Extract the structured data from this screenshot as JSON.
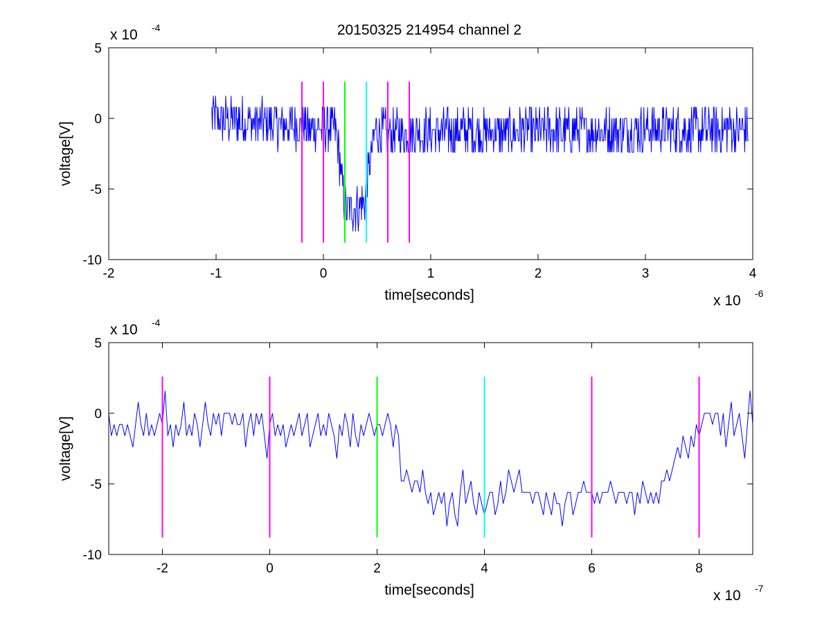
{
  "title": "20150325 214954 channel 2",
  "chart_data": [
    {
      "type": "line",
      "title": "20150325 214954 channel 2",
      "xlabel": "time[seconds]",
      "ylabel": "voltage[V]",
      "x_multiplier_label": "x 10",
      "x_multiplier_exp": "-6",
      "y_multiplier_label": "x 10",
      "y_multiplier_exp": "-4",
      "xlim": [
        -2,
        4
      ],
      "ylim": [
        -10,
        5
      ],
      "xticks": [
        -2,
        -1,
        0,
        1,
        2,
        3,
        4
      ],
      "yticks": [
        -10,
        -5,
        0,
        5
      ],
      "grid": false,
      "series": [
        {
          "color": "#0000ff",
          "x_start": -1.04,
          "x_step": 0.005,
          "baseline_segments": [
            {
              "x": -1.04,
              "y": 0
            },
            {
              "x": 0.12,
              "y": -0.8
            },
            {
              "x": 0.2,
              "y": -6.5
            },
            {
              "x": 0.38,
              "y": -6.0
            },
            {
              "x": 0.48,
              "y": -1.0
            },
            {
              "x": 3.96,
              "y": -0.8
            }
          ],
          "noise_amplitude": 1.6,
          "min_value": -8.0,
          "max_value": 2.3
        }
      ],
      "vertical_markers": [
        {
          "x": -0.2,
          "color": "#ff00ff",
          "y_range": [
            -8.8,
            2.6
          ]
        },
        {
          "x": 0.0,
          "color": "#ff00ff",
          "y_range": [
            -8.8,
            2.6
          ]
        },
        {
          "x": 0.2,
          "color": "#00ff00",
          "y_range": [
            -8.8,
            2.6
          ]
        },
        {
          "x": 0.4,
          "color": "#00ffff",
          "y_range": [
            -8.8,
            2.6
          ]
        },
        {
          "x": 0.6,
          "color": "#ff00ff",
          "y_range": [
            -8.8,
            2.6
          ]
        },
        {
          "x": 0.8,
          "color": "#ff00ff",
          "y_range": [
            -8.8,
            2.6
          ]
        }
      ]
    },
    {
      "type": "line",
      "xlabel": "time[seconds]",
      "ylabel": "voltage[V]",
      "x_multiplier_label": "x 10",
      "x_multiplier_exp": "-7",
      "y_multiplier_label": "x 10",
      "y_multiplier_exp": "-4",
      "xlim": [
        -3,
        9
      ],
      "ylim": [
        -10,
        5
      ],
      "xticks": [
        -2,
        0,
        2,
        4,
        6,
        8
      ],
      "yticks": [
        -10,
        -5,
        0,
        5
      ],
      "grid": false,
      "series": [
        {
          "color": "#0000ff",
          "x": [
            -3.0,
            -2.95,
            -2.9,
            -2.85,
            -2.8,
            -2.75,
            -2.7,
            -2.65,
            -2.6,
            -2.55,
            -2.5,
            -2.45,
            -2.4,
            -2.35,
            -2.3,
            -2.25,
            -2.2,
            -2.15,
            -2.1,
            -2.05,
            -2.0,
            -1.95,
            -1.9,
            -1.85,
            -1.8,
            -1.75,
            -1.7,
            -1.65,
            -1.6,
            -1.55,
            -1.5,
            -1.45,
            -1.4,
            -1.35,
            -1.3,
            -1.25,
            -1.2,
            -1.15,
            -1.1,
            -1.05,
            -1.0,
            -0.95,
            -0.9,
            -0.85,
            -0.8,
            -0.75,
            -0.7,
            -0.65,
            -0.6,
            -0.55,
            -0.5,
            -0.45,
            -0.4,
            -0.35,
            -0.3,
            -0.25,
            -0.2,
            -0.15,
            -0.1,
            -0.05,
            0.0,
            0.05,
            0.1,
            0.15,
            0.2,
            0.25,
            0.3,
            0.35,
            0.4,
            0.45,
            0.5,
            0.55,
            0.6,
            0.65,
            0.7,
            0.75,
            0.8,
            0.85,
            0.9,
            0.95,
            1.0,
            1.05,
            1.1,
            1.15,
            1.2,
            1.25,
            1.3,
            1.35,
            1.4,
            1.45,
            1.5,
            1.55,
            1.6,
            1.65,
            1.7,
            1.75,
            1.8,
            1.85,
            1.9,
            1.95,
            2.0,
            2.05,
            2.1,
            2.15,
            2.2,
            2.25,
            2.3,
            2.35,
            2.4,
            2.45,
            2.5,
            2.55,
            2.6,
            2.65,
            2.7,
            2.75,
            2.8,
            2.85,
            2.9,
            2.95,
            3.0,
            3.05,
            3.1,
            3.15,
            3.2,
            3.25,
            3.3,
            3.35,
            3.4,
            3.45,
            3.5,
            3.55,
            3.6,
            3.65,
            3.7,
            3.75,
            3.8,
            3.85,
            3.9,
            3.95,
            4.0,
            4.05,
            4.1,
            4.15,
            4.2,
            4.25,
            4.3,
            4.35,
            4.4,
            4.45,
            4.5,
            4.55,
            4.6,
            4.65,
            4.7,
            4.75,
            4.8,
            4.85,
            4.9,
            4.95,
            5.0,
            5.05,
            5.1,
            5.15,
            5.2,
            5.25,
            5.3,
            5.35,
            5.4,
            5.45,
            5.5,
            5.55,
            5.6,
            5.65,
            5.7,
            5.75,
            5.8,
            5.85,
            5.9,
            5.95,
            6.0,
            6.05,
            6.1,
            6.15,
            6.2,
            6.25,
            6.3,
            6.35,
            6.4,
            6.45,
            6.5,
            6.55,
            6.6,
            6.65,
            6.7,
            6.75,
            6.8,
            6.85,
            6.9,
            6.95,
            7.0,
            7.05,
            7.1,
            7.15,
            7.2,
            7.25,
            7.3,
            7.35,
            7.4,
            7.45,
            7.5,
            7.55,
            7.6,
            7.65,
            7.7,
            7.75,
            7.8,
            7.85,
            7.9,
            7.95,
            8.0,
            8.05,
            8.1,
            8.15,
            8.2,
            8.25,
            8.3,
            8.35,
            8.4,
            8.45,
            8.5,
            8.55,
            8.6,
            8.65,
            8.7,
            8.75,
            8.8,
            8.85,
            8.9,
            8.95,
            9.0
          ],
          "y": [
            0,
            -1.6,
            -0.8,
            -1.6,
            -0.8,
            -0.8,
            -1.6,
            -0.8,
            -1.6,
            -2.4,
            -0.8,
            0.8,
            -0.8,
            -1.6,
            0,
            -1.6,
            -0.8,
            -1.6,
            -0.8,
            0,
            -0.8,
            1.6,
            -1.6,
            -0.8,
            -2.4,
            -0.8,
            -1.6,
            -0.8,
            0.8,
            -1.6,
            -0.8,
            -1.6,
            0,
            -0.8,
            -2.4,
            -0.8,
            0.8,
            -0.8,
            -1.6,
            0,
            -0.8,
            0,
            -1.6,
            0,
            0,
            0,
            -0.8,
            0,
            -0.8,
            -0.8,
            0,
            -2.4,
            -0.8,
            0,
            -1.6,
            0,
            -0.8,
            0,
            -1.6,
            -3.2,
            -0.8,
            0,
            -1.6,
            -0.8,
            -1.6,
            -0.8,
            -2.4,
            -1.6,
            -0.8,
            -1.6,
            -0.8,
            0,
            -1.6,
            -0.8,
            0,
            -2.4,
            -1.6,
            -0.8,
            0,
            -1.6,
            -0.8,
            -1.6,
            0,
            -0.8,
            -1.6,
            -3.2,
            -0.8,
            -1.6,
            0,
            -0.8,
            -2.4,
            0,
            -1.6,
            -2.4,
            -0.8,
            -1.6,
            -0.8,
            0,
            -0.8,
            -1.6,
            -0.8,
            -0.8,
            -1.6,
            -0.8,
            0,
            -0.8,
            -2.4,
            -0.8,
            -1.6,
            -4.8,
            -4.8,
            -4.0,
            -4.8,
            -5.6,
            -4.8,
            -4.8,
            -5.6,
            -4.0,
            -5.6,
            -6.4,
            -5.6,
            -7.2,
            -6.4,
            -5.6,
            -6.4,
            -5.6,
            -8.0,
            -6.4,
            -5.6,
            -7.2,
            -8.0,
            -5.6,
            -4.0,
            -6.4,
            -5.6,
            -4.8,
            -6.4,
            -7.2,
            -5.6,
            -6.4,
            -7.2,
            -6.4,
            -5.6,
            -5.6,
            -7.2,
            -6.4,
            -4.8,
            -6.4,
            -5.6,
            -4.0,
            -4.8,
            -5.6,
            -4.8,
            -4.0,
            -5.6,
            -5.6,
            -5.6,
            -5.6,
            -6.4,
            -5.6,
            -5.6,
            -6.4,
            -7.2,
            -5.6,
            -6.4,
            -7.2,
            -5.6,
            -6.4,
            -6.4,
            -8.0,
            -6.4,
            -5.6,
            -5.6,
            -7.2,
            -6.4,
            -5.6,
            -5.6,
            -4.8,
            -5.6,
            -5.6,
            -5.6,
            -6.4,
            -5.6,
            -6.4,
            -5.6,
            -5.6,
            -5.6,
            -4.8,
            -5.6,
            -6.4,
            -5.6,
            -5.6,
            -5.6,
            -6.4,
            -5.6,
            -5.6,
            -7.2,
            -5.6,
            -6.4,
            -4.8,
            -5.6,
            -6.4,
            -5.6,
            -6.4,
            -5.6,
            -6.4,
            -4.8,
            -4.8,
            -4.0,
            -4.8,
            -4.0,
            -3.2,
            -2.4,
            -3.2,
            -1.6,
            -2.4,
            -3.2,
            -1.6,
            -2.4,
            -0.8,
            -1.6,
            -0.8,
            0,
            0,
            0,
            -0.8,
            0,
            0,
            -1.6,
            0,
            -2.4,
            -0.8,
            0.8,
            -1.6,
            -0.8,
            0,
            -1.6,
            -3.2,
            -0.8,
            1.6,
            -0.8
          ],
          "noise_amplitude": 0
        }
      ],
      "vertical_markers": [
        {
          "x": -2,
          "color": "#ff00ff",
          "y_range": [
            -8.8,
            2.6
          ]
        },
        {
          "x": 0,
          "color": "#ff00ff",
          "y_range": [
            -8.8,
            2.6
          ]
        },
        {
          "x": 2,
          "color": "#00ff00",
          "y_range": [
            -8.8,
            2.6
          ]
        },
        {
          "x": 4,
          "color": "#00ffff",
          "y_range": [
            -8.8,
            2.6
          ]
        },
        {
          "x": 6,
          "color": "#ff00ff",
          "y_range": [
            -8.8,
            2.6
          ]
        },
        {
          "x": 8,
          "color": "#ff00ff",
          "y_range": [
            -8.8,
            2.6
          ]
        }
      ]
    }
  ]
}
